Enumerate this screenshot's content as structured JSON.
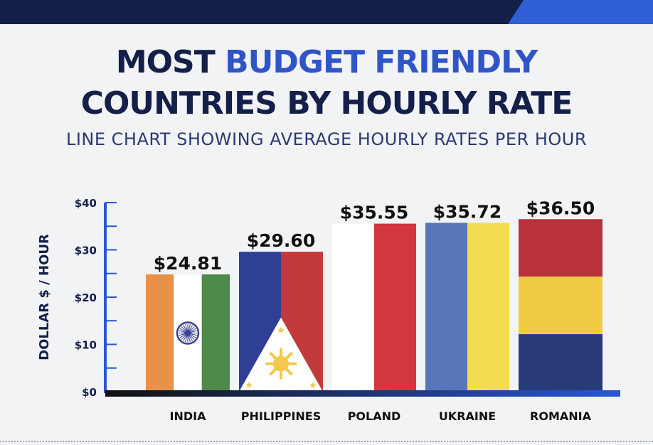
{
  "header": {
    "title_part1": "MOST ",
    "title_accent": "BUDGET FRIENDLY",
    "title_line2": "COUNTRIES BY HOURLY RATE",
    "subtitle": "LINE CHART SHOWING AVERAGE HOURLY RATES PER HOUR"
  },
  "colors": {
    "navy": "#14204a",
    "accent_blue": "#2f55c6",
    "axis_blue": "#2a56d6",
    "india_saffron": "#e8914a",
    "india_green": "#4e8a4a",
    "chakra": "#3a3f8f",
    "ph_blue": "#2f3f94",
    "ph_red": "#c23a3a",
    "sun_yellow": "#f2c94c",
    "poland_red": "#d2373f",
    "ukraine_blue": "#5777b8",
    "ukraine_yellow": "#f1dd4f",
    "ro_blue": "#283a78",
    "ro_yellow": "#f0cc44",
    "ro_red": "#b9313b"
  },
  "chart_data": {
    "type": "bar",
    "categories": [
      "INDIA",
      "PHILIPPINES",
      "POLAND",
      "UKRAINE",
      "ROMANIA"
    ],
    "values": [
      24.81,
      29.6,
      35.55,
      35.72,
      36.5
    ],
    "value_labels": [
      "$24.81",
      "$29.60",
      "$35.55",
      "$35.72",
      "$36.50"
    ],
    "bar_styles": [
      "india-flag",
      "philippines-flag",
      "poland-flag",
      "ukraine-flag",
      "romania-flag"
    ],
    "ylabel": "DOLLAR $ / HOUR",
    "yticks": [
      0,
      10,
      20,
      30,
      40
    ],
    "ytick_labels": [
      "$0",
      "$10",
      "$20",
      "$30",
      "$40"
    ],
    "ylim": [
      0,
      40
    ],
    "grid": false
  }
}
